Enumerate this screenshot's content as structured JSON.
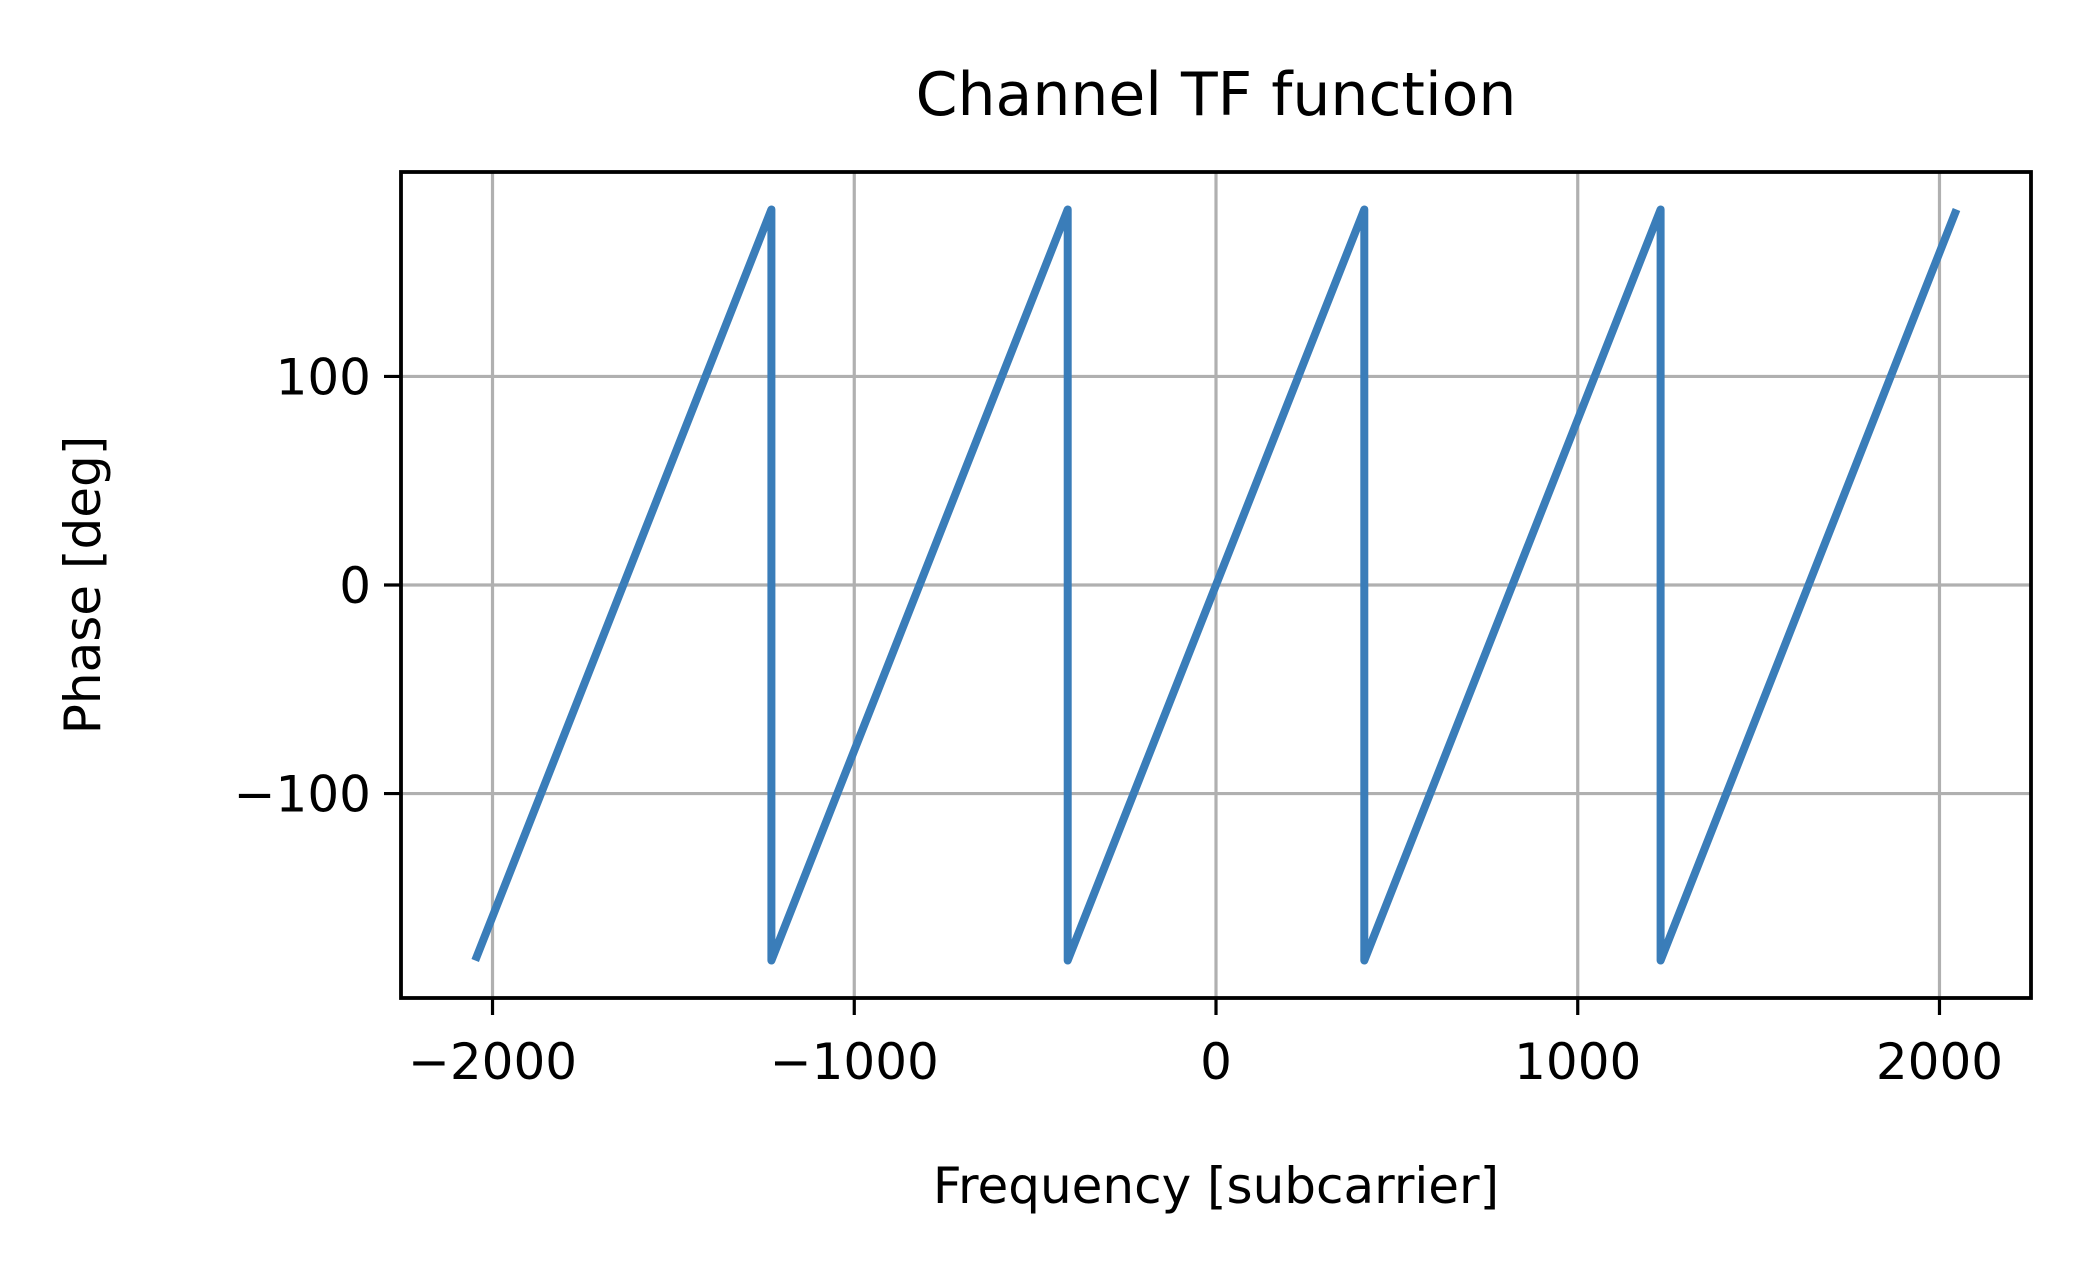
{
  "chart_data": {
    "type": "line",
    "title": "Channel TF function",
    "xlabel": "Frequency [subcarrier]",
    "ylabel": "Phase [deg]",
    "xlim": [
      -2253,
      2253
    ],
    "ylim": [
      -198,
      198
    ],
    "xticks": [
      -2000,
      -1000,
      0,
      1000,
      2000
    ],
    "xtick_labels": [
      "−2000",
      "−1000",
      "0",
      "1000",
      "2000"
    ],
    "yticks": [
      -100,
      0,
      100
    ],
    "ytick_labels": [
      "−100",
      "0",
      "100"
    ],
    "grid": true,
    "legend": "none",
    "series": [
      {
        "color": "#3a7db9",
        "x": [
          -2048,
          -1229,
          -1229,
          -410,
          -410,
          410,
          410,
          1229,
          1229,
          2047
        ],
        "y": [
          -180,
          180,
          -180,
          180,
          -180,
          180,
          -180,
          180,
          -180,
          180
        ]
      }
    ]
  }
}
